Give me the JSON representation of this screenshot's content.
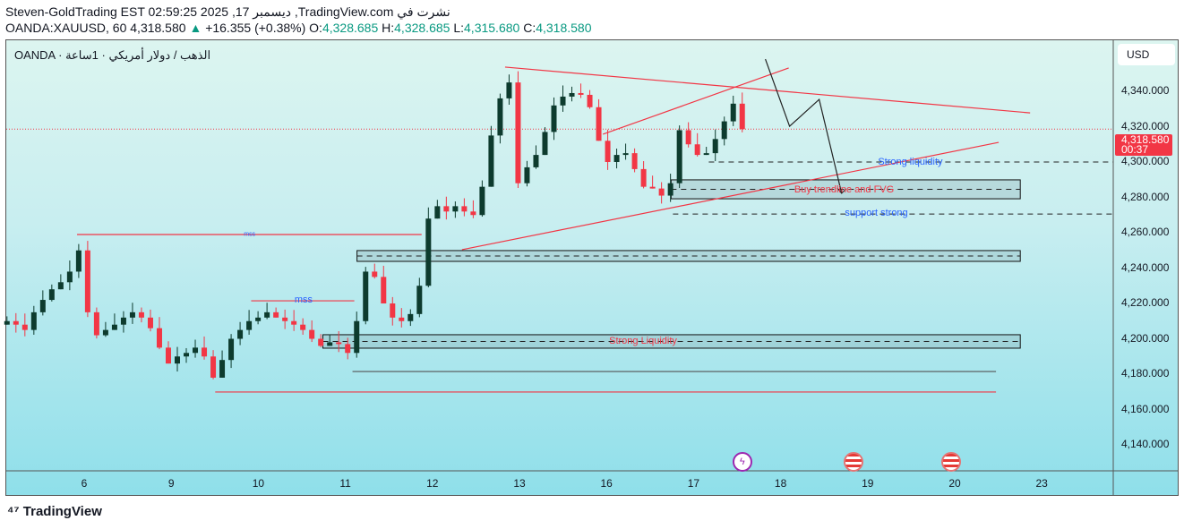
{
  "header": {
    "line1": "Steven-GoldTrading EST 02:59:25 2025 ,17 ديسمبر ,TradingView.com نشرت في",
    "symbol": "OANDA:XAUUSD, 60 4,318.580",
    "change": "+16.355 (+0.38%)",
    "o_label": "O:",
    "o": "4,328.685",
    "h_label": "H:",
    "h": "4,328.685",
    "l_label": "L:",
    "l": "4,315.680",
    "c_label": "C:",
    "c": "4,318.580"
  },
  "legend": "OANDA · الذهب / دولار أمريكي · 1ساعة",
  "currency": "USD",
  "current_price": {
    "value": "4,318.580",
    "countdown": "00:37"
  },
  "colors": {
    "up": "#0d3b2e",
    "down": "#f23645",
    "drawing_red": "#f23645",
    "label_blue": "#2962ff"
  },
  "footer": {
    "brand": "TradingView"
  },
  "events": [
    {
      "icon": "lightning-icon",
      "t": 7.56
    },
    {
      "icon": "us-flag-icon",
      "t": 8.84
    },
    {
      "icon": "us-flag-icon",
      "t": 9.96
    }
  ],
  "chart_data": {
    "type": "candlestick",
    "price_ticks": [
      4340,
      4320,
      4300,
      4280,
      4260,
      4240,
      4220,
      4200,
      4180,
      4160,
      4140
    ],
    "price_tick_labels": [
      "4,340.000",
      "4,320.000",
      "4,300.000",
      "4,280.000",
      "4,260.000",
      "4,240.000",
      "4,220.000",
      "4,200.000",
      "4,180.000",
      "4,160.000",
      "4,140.000"
    ],
    "ylim": [
      4130,
      4365
    ],
    "x_ticks": [
      {
        "t": 0,
        "label": "6"
      },
      {
        "t": 1,
        "label": "9"
      },
      {
        "t": 2,
        "label": "10"
      },
      {
        "t": 3,
        "label": "11"
      },
      {
        "t": 4,
        "label": "12"
      },
      {
        "t": 5,
        "label": "13"
      },
      {
        "t": 6,
        "label": "16"
      },
      {
        "t": 7,
        "label": "17"
      },
      {
        "t": 8,
        "label": "18"
      },
      {
        "t": 9,
        "label": "19"
      },
      {
        "t": 10,
        "label": "20"
      },
      {
        "t": 11,
        "label": "23"
      }
    ],
    "x_unit": "trading day index",
    "candle_start_t": -0.887,
    "candle_step_t": 0.103,
    "first_open": 4208,
    "closes": [
      4210,
      4208,
      4205,
      4215,
      4222,
      4228,
      4232,
      4238,
      4250,
      4215,
      4202,
      4205,
      4208,
      4212,
      4215,
      4212,
      4206,
      4195,
      4186,
      4190,
      4192,
      4195,
      4190,
      4178,
      4188,
      4200,
      4205,
      4210,
      4212,
      4215,
      4212,
      4210,
      4208,
      4205,
      4200,
      4196,
      4198,
      4197,
      4192,
      4210,
      4238,
      4235,
      4220,
      4212,
      4210,
      4214,
      4230,
      4268,
      4275,
      4272,
      4275,
      4272,
      4270,
      4286,
      4315,
      4336,
      4345,
      4288,
      4297,
      4304,
      4317,
      4332,
      4337,
      4339,
      4338,
      4331,
      4312,
      4300,
      4304,
      4305,
      4296,
      4286,
      4285,
      4281,
      4288,
      4318,
      4310,
      4304,
      4305,
      4313,
      4323,
      4333,
      4318.58
    ],
    "drawings": {
      "lines": [
        {
          "name": "upper-trendline",
          "color": "#f23645",
          "p1": [
            4.835,
            4353.7
          ],
          "p2": [
            10.866,
            4327.8
          ]
        },
        {
          "name": "rising-wedge-line",
          "color": "#f23645",
          "p1": [
            5.959,
            4315.7
          ],
          "p2": [
            8.093,
            4353.2
          ]
        },
        {
          "name": "support-trendline",
          "color": "#f23645",
          "p1": [
            4.34,
            4250.4
          ],
          "p2": [
            10.505,
            4311.1
          ]
        },
        {
          "name": "mss-line",
          "color": "#f23645",
          "p1": [
            -0.082,
            4259
          ],
          "p2": [
            3.876,
            4259
          ]
        },
        {
          "name": "mss-line-2",
          "color": "#f23645",
          "p1": [
            1.918,
            4221.5
          ],
          "p2": [
            3.103,
            4221.5
          ]
        },
        {
          "name": "low-line",
          "color": "#f23645",
          "p1": [
            1.505,
            4169.9
          ],
          "p2": [
            10.474,
            4169.9
          ]
        },
        {
          "name": "low-line-black",
          "color": "#555555",
          "p1": [
            3.082,
            4181.5
          ],
          "p2": [
            10.474,
            4181.5
          ]
        }
      ],
      "dashed": [
        {
          "price": 4300,
          "t1": 7.175
        },
        {
          "price": 4270.6,
          "t1": 6.763
        }
      ],
      "boxes": [
        {
          "p1": 4289.9,
          "p2": 4279.2,
          "t1": 6.742,
          "t2": 10.753
        },
        {
          "p1": 4249.9,
          "p2": 4243.8,
          "t1": 3.134,
          "t2": 10.753
        },
        {
          "p1": 4202.3,
          "p2": 4194.7,
          "t1": 2.742,
          "t2": 10.753
        }
      ],
      "path": [
        [
          7.825,
          4358.2
        ],
        [
          8.103,
          4320.2
        ],
        [
          8.443,
          4335.4
        ],
        [
          8.701,
          4282.3
        ]
      ],
      "labels": [
        {
          "text": "mss",
          "t": 1.9,
          "price": 4259,
          "color": "#2962ff",
          "size": "small"
        },
        {
          "text": "mss",
          "t": 2.52,
          "price": 4222,
          "color": "#2962ff"
        },
        {
          "text": "Strong liquidity",
          "t": 9.49,
          "price": 4300,
          "color": "#2962ff"
        },
        {
          "text": "Buy trendline and FVG",
          "t": 8.73,
          "price": 4284.5,
          "color": "#f23645"
        },
        {
          "text": "support strong",
          "t": 9.1,
          "price": 4271,
          "color": "#2962ff"
        },
        {
          "text": "Strong Liquidity",
          "t": 6.42,
          "price": 4198.5,
          "color": "#f23645"
        }
      ]
    }
  }
}
